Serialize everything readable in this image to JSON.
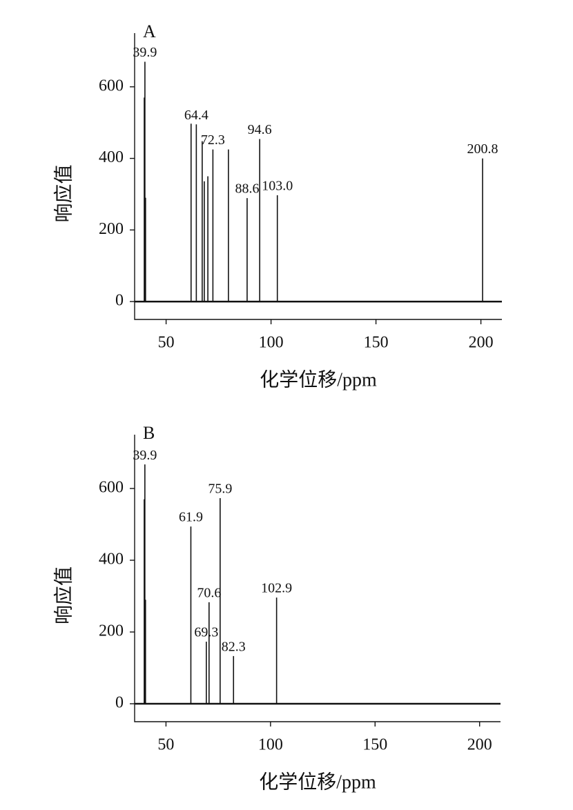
{
  "chart_data": [
    {
      "type": "stem",
      "title": "A",
      "xlabel": "化学位移/ppm",
      "ylabel": "响应值",
      "x": [
        39.6,
        39.9,
        40.2,
        61.9,
        64.4,
        67.2,
        68.2,
        69.9,
        72.3,
        79.7,
        88.6,
        94.6,
        103.0,
        200.8
      ],
      "values": [
        570,
        670,
        290,
        497,
        495,
        448,
        336,
        350,
        425,
        425,
        289,
        454,
        297,
        400
      ],
      "labels": [
        null,
        "39.9",
        null,
        null,
        "64.4",
        null,
        null,
        null,
        "72.3",
        null,
        "88.6",
        "94.6",
        "103.0",
        "200.8"
      ],
      "color": "#111111",
      "xlim": [
        35,
        210
      ],
      "xticks": [
        50,
        100,
        150,
        200
      ],
      "ylim": [
        -50,
        750
      ],
      "yticks": [
        0,
        200,
        400,
        600
      ]
    },
    {
      "type": "stem",
      "title": "B",
      "xlabel": "化学位移/ppm",
      "ylabel": "响应值",
      "x": [
        39.6,
        39.9,
        40.2,
        61.9,
        69.3,
        70.6,
        75.9,
        82.3,
        102.9
      ],
      "values": [
        570,
        667,
        290,
        494,
        173,
        283,
        573,
        133,
        296
      ],
      "labels": [
        null,
        "39.9",
        null,
        "61.9",
        "69.3",
        "70.6",
        "75.9",
        "82.3",
        "102.9"
      ],
      "color": "#111111",
      "xlim": [
        35,
        210
      ],
      "xticks": [
        50,
        100,
        150,
        200
      ],
      "ylim": [
        -50,
        750
      ],
      "yticks": [
        0,
        200,
        400,
        600
      ]
    }
  ]
}
